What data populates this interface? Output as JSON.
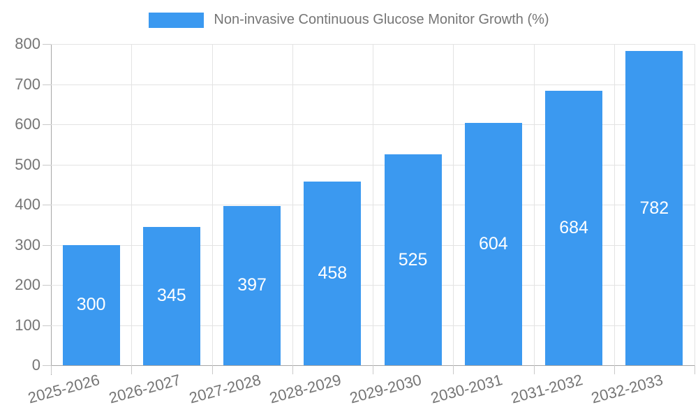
{
  "chart_data": {
    "type": "bar",
    "legend_label": "Non-invasive Continuous Glucose Monitor Growth (%)",
    "categories": [
      "2025-2026",
      "2026-2027",
      "2027-2028",
      "2028-2029",
      "2029-2030",
      "2030-2031",
      "2031-2032",
      "2032-2033"
    ],
    "values": [
      300,
      345,
      397,
      458,
      525,
      604,
      684,
      782
    ],
    "value_labels": [
      "300",
      "345",
      "397",
      "458",
      "525",
      "604",
      "684",
      "782"
    ],
    "ylim": [
      0,
      800
    ],
    "ytick_step": 100,
    "yticks": [
      0,
      100,
      200,
      300,
      400,
      500,
      600,
      700,
      800
    ],
    "xlabel": "",
    "ylabel": "",
    "grid": true,
    "legend_position": "top",
    "x_label_rotation": -15,
    "colors": {
      "bar": "#3b99f0",
      "bar_value_text": "#ffffff",
      "axis_text": "#757575",
      "grid_line": "#e3e3e3",
      "tick_mark": "#c9c9c9",
      "axis_line": "#a6a6a6"
    }
  }
}
